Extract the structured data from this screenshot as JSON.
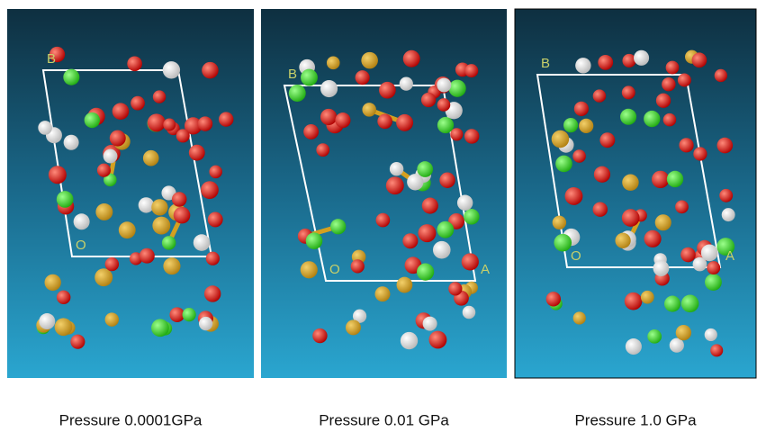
{
  "panels": [
    {
      "caption": "Pressure 0.0001GPa",
      "labels": [
        "B",
        "O"
      ]
    },
    {
      "caption": "Pressure 0.01 GPa",
      "labels": [
        "B",
        "O",
        "A"
      ]
    },
    {
      "caption": "Pressure 1.0 GPa",
      "labels": [
        "B",
        "O",
        "A"
      ]
    }
  ]
}
